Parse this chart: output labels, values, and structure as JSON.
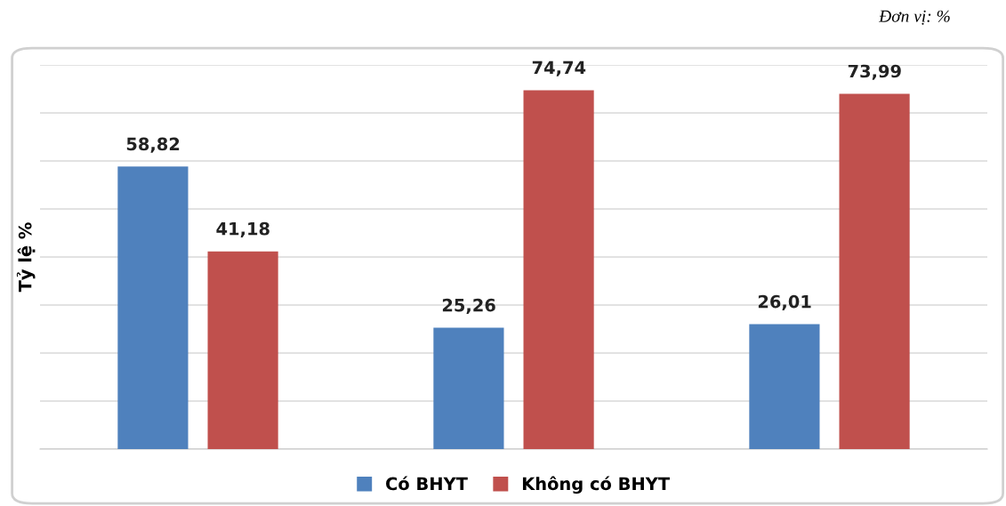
{
  "chart_data": {
    "type": "bar",
    "ylabel": "Tỷ lệ %",
    "annotations": [
      "Đơn vị: %"
    ],
    "categories": [
      null,
      null,
      null
    ],
    "series": [
      {
        "name": "Có BHYT",
        "color": "#4f81bd",
        "values": [
          58.82,
          25.26,
          26.01
        ],
        "value_labels": [
          "58,82",
          "25,26",
          "26,01"
        ]
      },
      {
        "name": "Không có BHYT",
        "color": "#c0504d",
        "values": [
          41.18,
          74.74,
          73.99
        ],
        "value_labels": [
          "41,18",
          "74,74",
          "73,99"
        ]
      }
    ],
    "ylim": [
      0,
      80
    ],
    "yticks": [
      {
        "value": 0,
        "label": null
      },
      {
        "value": 10,
        "label": null
      },
      {
        "value": 20,
        "label": null
      },
      {
        "value": 30,
        "label": null
      },
      {
        "value": 40,
        "label": null
      },
      {
        "value": 50,
        "label": null
      },
      {
        "value": 60,
        "label": null
      },
      {
        "value": 70,
        "label": null
      },
      {
        "value": 80,
        "label": null
      }
    ],
    "grid": "y",
    "legend": "bottom",
    "tick_labels": false
  }
}
